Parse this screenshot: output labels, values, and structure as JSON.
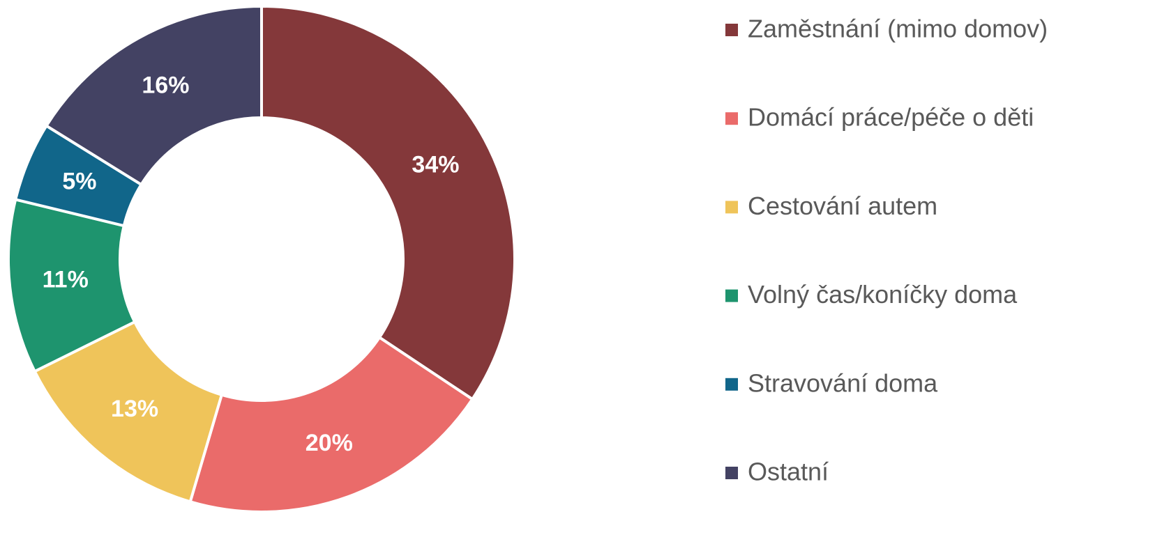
{
  "chart_data": {
    "type": "donut",
    "categories": [
      "Zaměstnání (mimo domov)",
      "Domácí práce/péče o děti",
      "Cestování autem",
      "Volný čas/koníčky doma",
      "Stravování doma",
      "Ostatní"
    ],
    "values": [
      34,
      20,
      13,
      11,
      5,
      16
    ],
    "value_labels": [
      "34%",
      "20%",
      "13%",
      "11%",
      "5%",
      "16%"
    ],
    "colors": [
      "#84383a",
      "#ea6b6a",
      "#efc45a",
      "#1e946e",
      "#11668a",
      "#434263"
    ],
    "legend": "right"
  }
}
